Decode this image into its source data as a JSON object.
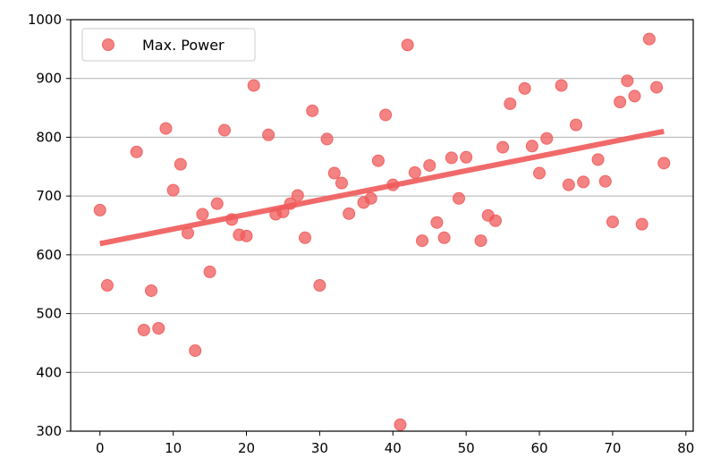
{
  "chart_data": {
    "type": "scatter",
    "xlim": [
      -4,
      81
    ],
    "ylim": [
      300,
      1000
    ],
    "xticks": [
      0,
      10,
      20,
      30,
      40,
      50,
      60,
      70,
      80
    ],
    "yticks": [
      300,
      400,
      500,
      600,
      700,
      800,
      900,
      1000
    ],
    "grid": {
      "y": true,
      "x": false
    },
    "legend": {
      "placement": "top-left",
      "label": "Max. Power"
    },
    "colors": {
      "points": "#f05a5a",
      "trend": "#f05a5a"
    },
    "series": [
      {
        "name": "Max. Power",
        "x": [
          0,
          1,
          5,
          6,
          7,
          8,
          9,
          10,
          11,
          12,
          13,
          14,
          15,
          16,
          17,
          18,
          19,
          20,
          21,
          23,
          24,
          25,
          26,
          27,
          28,
          29,
          30,
          31,
          32,
          33,
          34,
          36,
          37,
          38,
          39,
          40,
          41,
          42,
          43,
          44,
          45,
          46,
          47,
          48,
          49,
          50,
          52,
          53,
          54,
          55,
          56,
          58,
          59,
          60,
          61,
          63,
          64,
          65,
          66,
          68,
          69,
          70,
          71,
          72,
          73,
          74,
          75,
          76,
          77
        ],
        "y": [
          676,
          548,
          775,
          472,
          539,
          475,
          815,
          710,
          754,
          637,
          437,
          669,
          571,
          687,
          812,
          660,
          634,
          632,
          888,
          804,
          669,
          673,
          687,
          701,
          629,
          845,
          548,
          797,
          739,
          722,
          670,
          689,
          696,
          760,
          838,
          719,
          311,
          957,
          740,
          624,
          752,
          655,
          629,
          765,
          696,
          766,
          624,
          667,
          658,
          783,
          857,
          883,
          785,
          739,
          798,
          888,
          719,
          821,
          724,
          762,
          725,
          656,
          860,
          896,
          870,
          652,
          967,
          885,
          756
        ]
      }
    ],
    "trend_line": {
      "x": [
        0,
        77
      ],
      "y": [
        619,
        810
      ]
    }
  }
}
